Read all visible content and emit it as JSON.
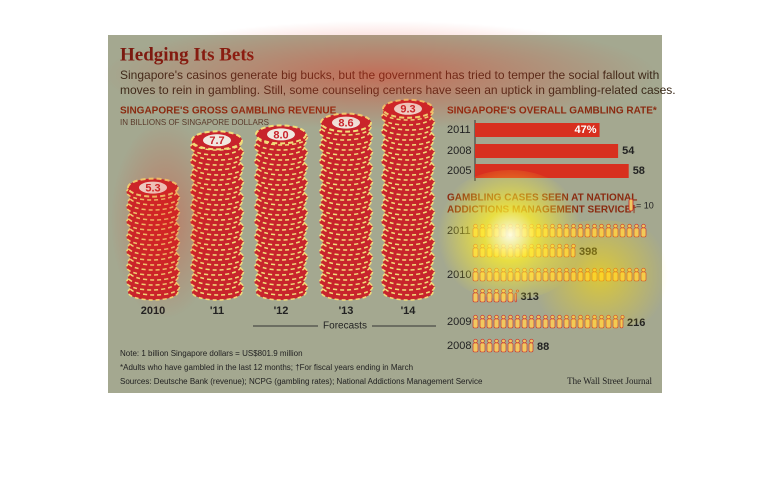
{
  "header": {
    "title": "Hedging Its Bets",
    "intro": [
      "Singapore's casinos generate big bucks, but the government has tried to temper the social fallout with",
      "moves to rein in gambling. Still, some counseling centers have seen an uptick in gambling-related cases."
    ]
  },
  "chart_data": [
    {
      "type": "pictograph",
      "title": "SINGAPORE'S GROSS GAMBLING REVENUE",
      "subtitle": "IN BILLIONS OF SINGAPORE DOLLARS",
      "categories": [
        "2010",
        "'11",
        "'12",
        "'13",
        "'14"
      ],
      "values": [
        5.3,
        7.7,
        8.0,
        8.6,
        9.3
      ],
      "value_labels": [
        "5.3",
        "7.7",
        "8.0",
        "8.6",
        "9.3"
      ],
      "annotation": "Forecasts",
      "color": "#c8242c"
    },
    {
      "type": "bar",
      "title": "SINGAPORE'S OVERALL GAMBLING RATE*",
      "categories": [
        "2011",
        "2008",
        "2005"
      ],
      "values": [
        47,
        54,
        58
      ],
      "value_labels": [
        "47%",
        "54",
        "58"
      ],
      "color": "#d8301f"
    },
    {
      "type": "icons",
      "title": [
        "GAMBLING CASES SEEN AT NATIONAL",
        "ADDICTIONS MANAGEMENT SERVICE†"
      ],
      "legend": "= 10",
      "categories": [
        "2011",
        "2010",
        "2009",
        "2008"
      ],
      "values": [
        398,
        313,
        216,
        88
      ],
      "color": "#f0c860"
    }
  ],
  "footer": {
    "notes": [
      "Note: 1 billion Singapore dollars = US$801.9 million",
      "*Adults who have gambled in the last 12 months; †For fiscal years ending in March",
      "Sources: Deutsche Bank (revenue); NCPG (gambling rates); National Addictions Management Service"
    ],
    "credit": "The Wall Street Journal"
  }
}
